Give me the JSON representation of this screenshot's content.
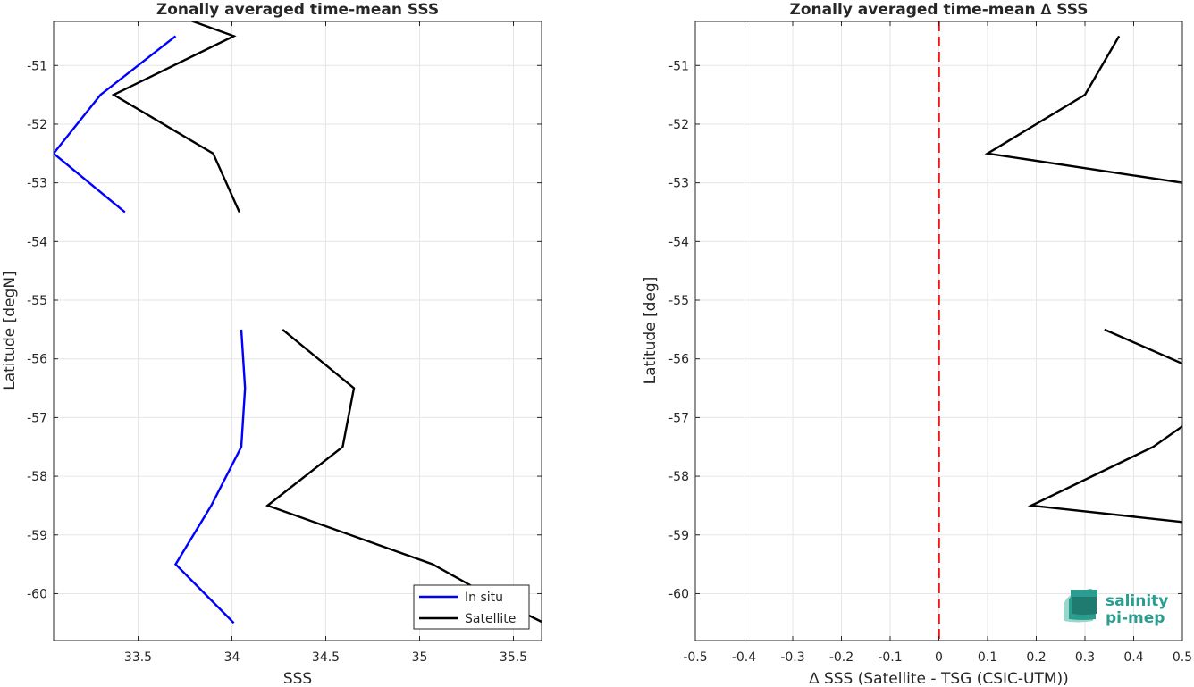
{
  "chart_data": [
    {
      "type": "line",
      "title": "Zonally averaged time-mean SSS",
      "xlabel": "SSS",
      "ylabel": "Latitude [degN]",
      "xlim": [
        33.05,
        35.65
      ],
      "ylim": [
        -60.8,
        -50.25
      ],
      "x_ticks": [
        33.5,
        34,
        34.5,
        35,
        35.5
      ],
      "x_tick_labels": [
        "33.5",
        "34",
        "34.5",
        "35",
        "35.5"
      ],
      "y_ticks": [
        -51,
        -52,
        -53,
        -54,
        -55,
        -56,
        -57,
        -58,
        -59,
        -60
      ],
      "y_tick_labels": [
        "-51",
        "-52",
        "-53",
        "-54",
        "-55",
        "-56",
        "-57",
        "-58",
        "-59",
        "-60"
      ],
      "grid": true,
      "legend_position": "bottom-right",
      "series": [
        {
          "name": "In situ",
          "color": "#0000ff",
          "segments": [
            [
              [
                33.7,
                -50.5
              ],
              [
                33.3,
                -51.5
              ],
              [
                33.05,
                -52.5
              ],
              [
                33.43,
                -53.5
              ]
            ],
            [
              [
                34.05,
                -55.5
              ],
              [
                34.07,
                -56.5
              ],
              [
                34.05,
                -57.5
              ],
              [
                33.89,
                -58.5
              ],
              [
                33.7,
                -59.5
              ],
              [
                34.01,
                -60.5
              ]
            ]
          ]
        },
        {
          "name": "Satellite",
          "color": "#000000",
          "segments": [
            [
              [
                33.75,
                -50.2
              ],
              [
                34.01,
                -50.5
              ],
              [
                33.37,
                -51.5
              ],
              [
                33.9,
                -52.5
              ],
              [
                34.04,
                -53.5
              ]
            ],
            [
              [
                34.27,
                -55.5
              ],
              [
                34.65,
                -56.5
              ],
              [
                34.59,
                -57.5
              ],
              [
                34.19,
                -58.5
              ],
              [
                35.07,
                -59.5
              ],
              [
                35.35,
                -60.0
              ],
              [
                35.65,
                -60.48
              ]
            ]
          ]
        }
      ]
    },
    {
      "type": "line",
      "title": "Zonally averaged time-mean ∆ SSS",
      "xlabel": "∆ SSS (Satellite - TSG (CSIC-UTM))",
      "ylabel": "Latitude [deg]",
      "xlim": [
        -0.5,
        0.5
      ],
      "ylim": [
        -60.8,
        -50.25
      ],
      "x_ticks": [
        -0.5,
        -0.4,
        -0.3,
        -0.2,
        -0.1,
        0,
        0.1,
        0.2,
        0.3,
        0.4,
        0.5
      ],
      "x_tick_labels": [
        "-0.5",
        "-0.4",
        "-0.3",
        "-0.2",
        "-0.1",
        "0",
        "0.1",
        "0.2",
        "0.3",
        "0.4",
        "0.5"
      ],
      "y_ticks": [
        -51,
        -52,
        -53,
        -54,
        -55,
        -56,
        -57,
        -58,
        -59,
        -60
      ],
      "y_tick_labels": [
        "-51",
        "-52",
        "-53",
        "-54",
        "-55",
        "-56",
        "-57",
        "-58",
        "-59",
        "-60"
      ],
      "grid": true,
      "reference_line": {
        "x": 0,
        "color": "#e41a1c",
        "style": "dashed"
      },
      "series": [
        {
          "color": "#000000",
          "segments": [
            [
              [
                0.37,
                -50.5
              ],
              [
                0.3,
                -51.5
              ],
              [
                0.1,
                -52.5
              ],
              [
                0.5,
                -53.0
              ]
            ],
            [
              [
                0.34,
                -55.5
              ],
              [
                0.5,
                -56.08
              ]
            ],
            [
              [
                0.5,
                -57.15
              ],
              [
                0.44,
                -57.5
              ],
              [
                0.19,
                -58.5
              ],
              [
                0.5,
                -58.78
              ]
            ]
          ]
        }
      ]
    }
  ],
  "logo": {
    "line1": "salinity",
    "line2": "pi-mep",
    "color": "#2a9d8f"
  }
}
